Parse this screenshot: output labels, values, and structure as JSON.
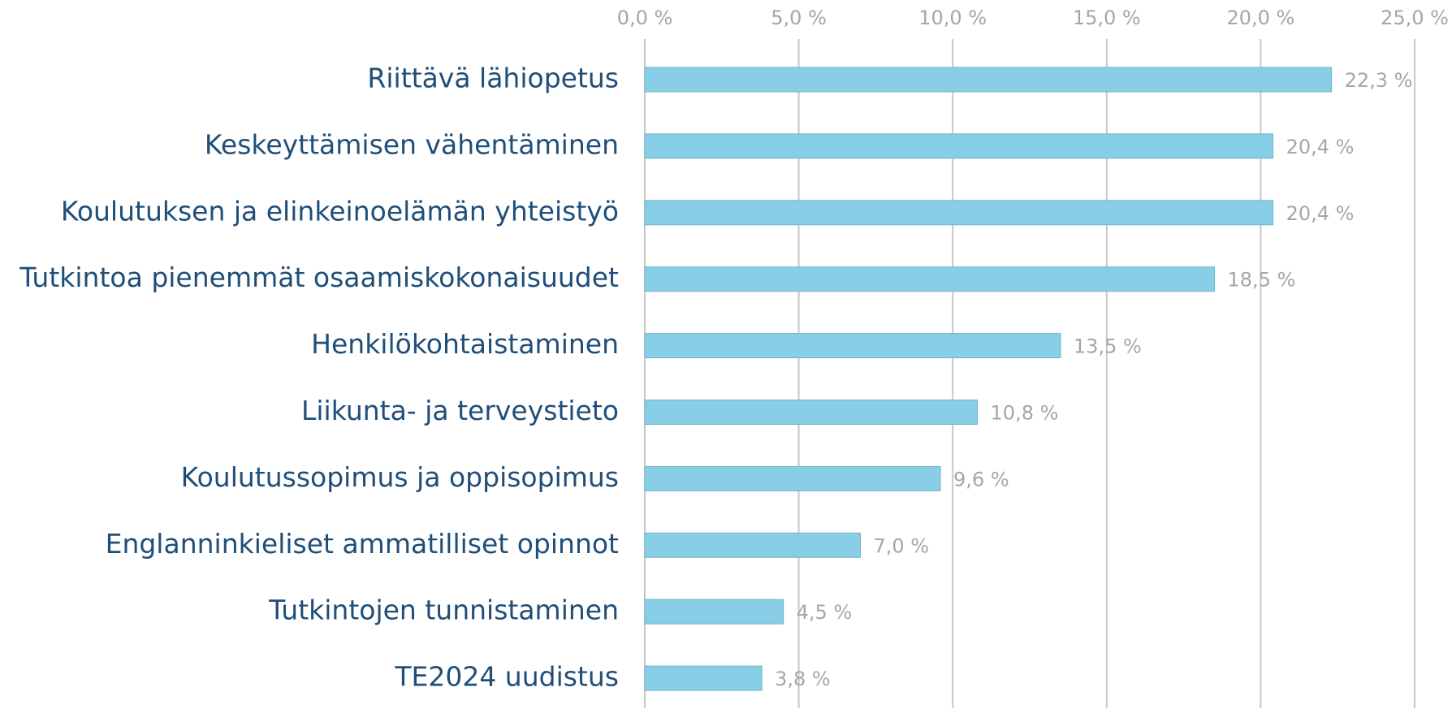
{
  "chart_data": {
    "type": "bar",
    "orientation": "horizontal",
    "categories": [
      "Riittävä lähiopetus",
      "Keskeyttämisen vähentäminen",
      "Koulutuksen ja elinkeinoelämän yhteistyö",
      "Tutkintoa pienemmät osaamiskokonaisuudet",
      "Henkilökohtaistaminen",
      "Liikunta- ja terveystieto",
      "Koulutussopimus ja oppisopimus",
      "Englanninkieliset ammatilliset opinnot",
      "Tutkintojen tunnistaminen",
      "TE2024 uudistus"
    ],
    "values": [
      22.3,
      20.4,
      20.4,
      18.5,
      13.5,
      10.8,
      9.6,
      7.0,
      4.5,
      3.8
    ],
    "value_labels": [
      "22,3 %",
      "20,4 %",
      "20,4 %",
      "18,5 %",
      "13,5 %",
      "10,8 %",
      "9,6 %",
      "7,0 %",
      "4,5 %",
      "3,8 %"
    ],
    "color": "#87cee6",
    "xlim": [
      0,
      25
    ],
    "xticks": [
      {
        "value": 0,
        "label": "0,0 %"
      },
      {
        "value": 5,
        "label": "5,0 %"
      },
      {
        "value": 10,
        "label": "10,0 %"
      },
      {
        "value": 15,
        "label": "15,0 %"
      },
      {
        "value": 20,
        "label": "20,0 %"
      },
      {
        "value": 25,
        "label": "25,0 %"
      }
    ],
    "grid": true
  }
}
